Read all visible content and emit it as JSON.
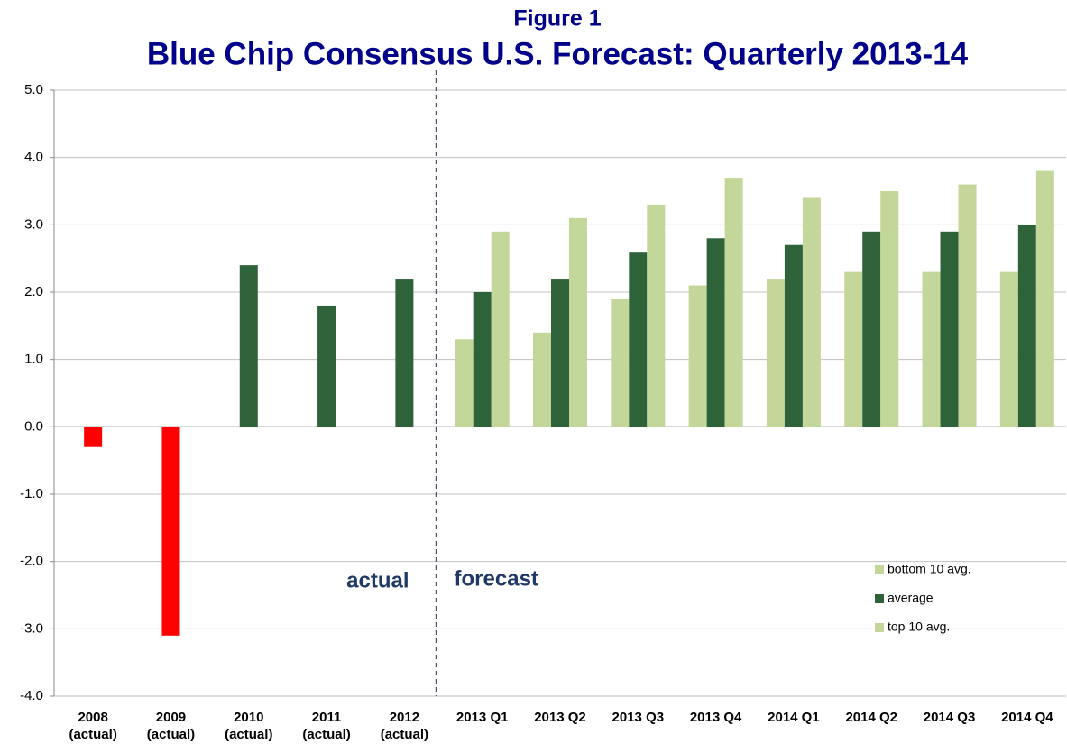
{
  "chart_data": {
    "type": "bar",
    "subtitle": "Figure 1",
    "title": "Blue Chip Consensus U.S. Forecast: Quarterly 2013-14",
    "categories": [
      [
        "2008",
        "(actual)"
      ],
      [
        "2009",
        "(actual)"
      ],
      [
        "2010",
        "(actual)"
      ],
      [
        "2011",
        "(actual)"
      ],
      [
        "2012",
        "(actual)"
      ],
      [
        "2013 Q1"
      ],
      [
        "2013 Q2"
      ],
      [
        "2013 Q3"
      ],
      [
        "2013 Q4"
      ],
      [
        "2014 Q1"
      ],
      [
        "2014 Q2"
      ],
      [
        "2014 Q3"
      ],
      [
        "2014 Q4"
      ]
    ],
    "series": [
      {
        "name": "bottom 10 avg.",
        "color": "#c4d79b",
        "values": [
          null,
          null,
          null,
          null,
          null,
          1.3,
          1.4,
          1.9,
          2.1,
          2.2,
          2.3,
          2.3,
          2.3
        ]
      },
      {
        "name": "average",
        "color": "#2e6239",
        "negative_color": "#ff0000",
        "values": [
          -0.3,
          -3.1,
          2.4,
          1.8,
          2.2,
          2.0,
          2.2,
          2.6,
          2.8,
          2.7,
          2.9,
          2.9,
          3.0
        ]
      },
      {
        "name": "top 10 avg.",
        "color": "#c4d79b",
        "values": [
          null,
          null,
          null,
          null,
          null,
          2.9,
          3.1,
          3.3,
          3.7,
          3.4,
          3.5,
          3.6,
          3.8
        ]
      }
    ],
    "annotations": [
      "actual",
      "forecast"
    ],
    "ylim": [
      -4,
      5
    ],
    "yticks": [
      {
        "value": -4,
        "label": "-4.0"
      },
      {
        "value": -3,
        "label": "-3.0"
      },
      {
        "value": -2,
        "label": "-2.0"
      },
      {
        "value": -1,
        "label": "-1.0"
      },
      {
        "value": 0,
        "label": "0.0"
      },
      {
        "value": 1,
        "label": "1.0"
      },
      {
        "value": 2,
        "label": "2.0"
      },
      {
        "value": 3,
        "label": "3.0"
      },
      {
        "value": 4,
        "label": "4.0"
      },
      {
        "value": 5,
        "label": "5.0"
      }
    ],
    "grid": true,
    "legend": "lower right"
  }
}
